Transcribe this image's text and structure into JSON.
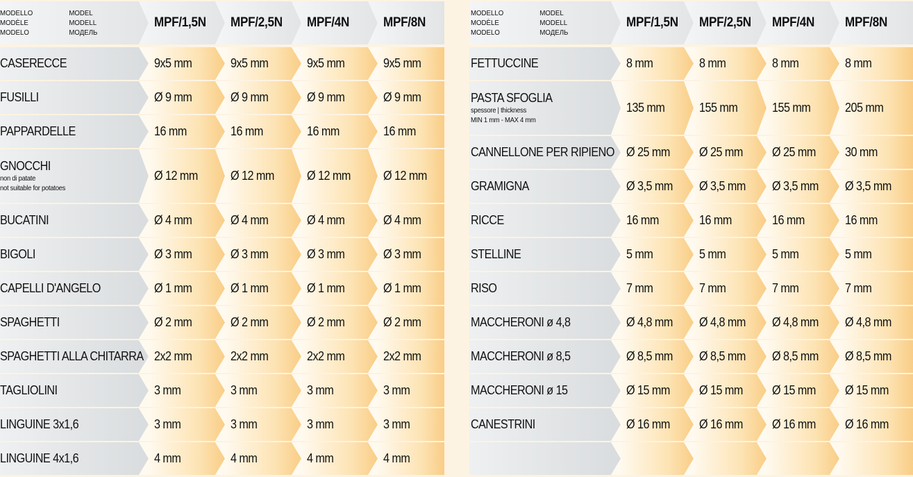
{
  "header_labels": {
    "col_a": [
      "MODELLO",
      "MODÈLE",
      "MODELO"
    ],
    "col_b": [
      "MODEL",
      "MODELL",
      "МОДЕЛЬ"
    ]
  },
  "models": [
    "MPF/1,5N",
    "MPF/2,5N",
    "MPF/4N",
    "MPF/8N"
  ],
  "colors": {
    "gray": "#dcdfe1",
    "orange": "#f9cd86"
  },
  "left_rows": [
    {
      "name": "CASERECCE",
      "values": [
        "9x5 mm",
        "9x5 mm",
        "9x5 mm",
        "9x5 mm"
      ]
    },
    {
      "name": "FUSILLI",
      "values": [
        "Ø 9 mm",
        "Ø 9 mm",
        "Ø 9 mm",
        "Ø 9 mm"
      ]
    },
    {
      "name": "PAPPARDELLE",
      "values": [
        "16 mm",
        "16 mm",
        "16 mm",
        "16 mm"
      ]
    },
    {
      "name": "GNOCCHI",
      "sub": [
        "non di patate",
        "not suitable for potatoes"
      ],
      "values": [
        "Ø 12 mm",
        "Ø 12 mm",
        "Ø 12 mm",
        "Ø 12 mm"
      ]
    },
    {
      "name": "BUCATINI",
      "values": [
        "Ø 4 mm",
        "Ø 4 mm",
        "Ø 4 mm",
        "Ø 4 mm"
      ]
    },
    {
      "name": "BIGOLI",
      "values": [
        "Ø 3 mm",
        "Ø 3 mm",
        "Ø 3 mm",
        "Ø 3 mm"
      ]
    },
    {
      "name": "CAPELLI D'ANGELO",
      "values": [
        "Ø 1 mm",
        "Ø 1 mm",
        "Ø 1 mm",
        "Ø 1 mm"
      ]
    },
    {
      "name": "SPAGHETTI",
      "values": [
        "Ø 2 mm",
        "Ø 2 mm",
        "Ø 2 mm",
        "Ø 2 mm"
      ]
    },
    {
      "name": "SPAGHETTI ALLA CHITARRA",
      "values": [
        "2x2 mm",
        "2x2 mm",
        "2x2 mm",
        "2x2 mm"
      ]
    },
    {
      "name": "TAGLIOLINI",
      "values": [
        "3 mm",
        "3 mm",
        "3 mm",
        "3 mm"
      ]
    },
    {
      "name": "LINGUINE 3x1,6",
      "values": [
        "3 mm",
        "3 mm",
        "3 mm",
        "3 mm"
      ]
    },
    {
      "name": "LINGUINE 4x1,6",
      "values": [
        "4 mm",
        "4 mm",
        "4 mm",
        "4 mm"
      ]
    }
  ],
  "right_rows": [
    {
      "name": "FETTUCCINE",
      "values": [
        "8 mm",
        "8 mm",
        "8 mm",
        "8 mm"
      ]
    },
    {
      "name": "PASTA SFOGLIA",
      "sub": [
        "spessore | thickness",
        "MIN 1 mm - MAX 4 mm"
      ],
      "values": [
        "135 mm",
        "155 mm",
        "155 mm",
        "205 mm"
      ]
    },
    {
      "name": "CANNELLONE PER RIPIENO",
      "values": [
        "Ø 25 mm",
        "Ø 25 mm",
        "Ø 25 mm",
        "30 mm"
      ]
    },
    {
      "name": "GRAMIGNA",
      "values": [
        "Ø 3,5 mm",
        "Ø 3,5 mm",
        "Ø 3,5 mm",
        "Ø 3,5 mm"
      ]
    },
    {
      "name": "RICCE",
      "values": [
        "16 mm",
        "16 mm",
        "16 mm",
        "16 mm"
      ]
    },
    {
      "name": "STELLINE",
      "values": [
        "5 mm",
        "5 mm",
        "5 mm",
        "5 mm"
      ]
    },
    {
      "name": "RISO",
      "values": [
        "7 mm",
        "7 mm",
        "7 mm",
        "7 mm"
      ]
    },
    {
      "name": "MACCHERONI ø 4,8",
      "values": [
        "Ø 4,8 mm",
        "Ø 4,8 mm",
        "Ø 4,8 mm",
        "Ø 4,8 mm"
      ]
    },
    {
      "name": "MACCHERONI ø 8,5",
      "values": [
        "Ø 8,5 mm",
        "Ø 8,5 mm",
        "Ø 8,5 mm",
        "Ø 8,5 mm"
      ]
    },
    {
      "name": "MACCHERONI ø 15",
      "values": [
        "Ø 15 mm",
        "Ø 15 mm",
        "Ø 15 mm",
        "Ø 15 mm"
      ]
    },
    {
      "name": "CANESTRINI",
      "values": [
        "Ø 16 mm",
        "Ø 16 mm",
        "Ø 16 mm",
        "Ø 16 mm"
      ]
    },
    {
      "name": "",
      "values": [
        "",
        "",
        "",
        ""
      ]
    }
  ]
}
